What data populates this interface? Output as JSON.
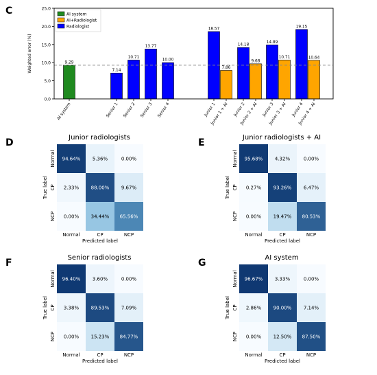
{
  "panel_letters": {
    "bar": "C",
    "cm": [
      "D",
      "E",
      "F",
      "G"
    ]
  },
  "colors": {
    "ai": "#1f8a1f",
    "ai_plus_rad": "#ffa500",
    "radiologist": "#0000ff",
    "refline": "#888888"
  },
  "chart_data": [
    {
      "type": "bar",
      "ylabel": "Weighted error (%)",
      "ylim": [
        0,
        25
      ],
      "yticks": [
        "0.0",
        "5.0",
        "10.0",
        "15.0",
        "20.0",
        "25.0"
      ],
      "reference_line": 9.29,
      "legend": {
        "placement": "top-left",
        "entries": [
          "AI system",
          "AI+Radiologist",
          "Radiologist"
        ]
      },
      "bars": [
        {
          "category": "AI system",
          "value": 9.29,
          "label": "9.29",
          "group": "AI system"
        },
        {
          "category": "Senior 1",
          "value": 7.14,
          "label": "7.14",
          "group": "Radiologist"
        },
        {
          "category": "Senior 2",
          "value": 10.71,
          "label": "10.71",
          "group": "Radiologist"
        },
        {
          "category": "Senior 3",
          "value": 13.77,
          "label": "13.77",
          "group": "Radiologist"
        },
        {
          "category": "Senior 4",
          "value": 10.0,
          "label": "10.00",
          "group": "Radiologist"
        },
        {
          "category": "Junior 1",
          "value": 18.57,
          "label": "18.57",
          "group": "Radiologist"
        },
        {
          "category": "Junior 1 + AI",
          "value": 7.86,
          "label": "7.86",
          "group": "AI+Radiologist"
        },
        {
          "category": "Junior 2",
          "value": 14.18,
          "label": "14.18",
          "group": "Radiologist"
        },
        {
          "category": "Junior 2 + AI",
          "value": 9.68,
          "label": "9.68",
          "group": "AI+Radiologist"
        },
        {
          "category": "Junior 3",
          "value": 14.89,
          "label": "14.89",
          "group": "Radiologist"
        },
        {
          "category": "Junior 3 + AI",
          "value": 10.71,
          "label": "10.71",
          "group": "AI+Radiologist"
        },
        {
          "category": "Junior 4",
          "value": 19.15,
          "label": "19.15",
          "group": "Radiologist"
        },
        {
          "category": "Junior 4 + AI",
          "value": 10.64,
          "label": "10.64",
          "group": "AI+Radiologist"
        }
      ]
    },
    {
      "type": "heatmap",
      "title": "Junior radiologists",
      "xlabel": "Predicted label",
      "ylabel": "True label",
      "labels": [
        "Normal",
        "CP",
        "NCP"
      ],
      "values": [
        [
          94.64,
          5.36,
          0.0
        ],
        [
          2.33,
          88.0,
          9.67
        ],
        [
          0.0,
          34.44,
          65.56
        ]
      ],
      "cell_text": [
        [
          "94.64%",
          "5.36%",
          "0.00%"
        ],
        [
          "2.33%",
          "88.00%",
          "9.67%"
        ],
        [
          "0.00%",
          "34.44%",
          "65.56%"
        ]
      ]
    },
    {
      "type": "heatmap",
      "title": "Junior radiologists + AI",
      "xlabel": "Predicted label",
      "ylabel": "True label",
      "labels": [
        "Normal",
        "CP",
        "NCP"
      ],
      "values": [
        [
          95.68,
          4.32,
          0.0
        ],
        [
          0.27,
          93.26,
          6.47
        ],
        [
          0.0,
          19.47,
          80.53
        ]
      ],
      "cell_text": [
        [
          "95.68%",
          "4.32%",
          "0.00%"
        ],
        [
          "0.27%",
          "93.26%",
          "6.47%"
        ],
        [
          "0.00%",
          "19.47%",
          "80.53%"
        ]
      ]
    },
    {
      "type": "heatmap",
      "title": "Senior radiologists",
      "xlabel": "Predicted label",
      "ylabel": "True label",
      "labels": [
        "Normal",
        "CP",
        "NCP"
      ],
      "values": [
        [
          96.4,
          3.6,
          0.0
        ],
        [
          3.38,
          89.53,
          7.09
        ],
        [
          0.0,
          15.23,
          84.77
        ]
      ],
      "cell_text": [
        [
          "96.40%",
          "3.60%",
          "0.00%"
        ],
        [
          "3.38%",
          "89.53%",
          "7.09%"
        ],
        [
          "0.00%",
          "15.23%",
          "84.77%"
        ]
      ]
    },
    {
      "type": "heatmap",
      "title": "AI system",
      "xlabel": "Predicted label",
      "ylabel": "True label",
      "labels": [
        "Normal",
        "CP",
        "NCP"
      ],
      "values": [
        [
          96.67,
          3.33,
          0.0
        ],
        [
          2.86,
          90.0,
          7.14
        ],
        [
          0.0,
          12.5,
          87.5
        ]
      ],
      "cell_text": [
        [
          "96.67%",
          "3.33%",
          "0.00%"
        ],
        [
          "2.86%",
          "90.00%",
          "7.14%"
        ],
        [
          "0.00%",
          "12.50%",
          "87.50%"
        ]
      ]
    }
  ]
}
